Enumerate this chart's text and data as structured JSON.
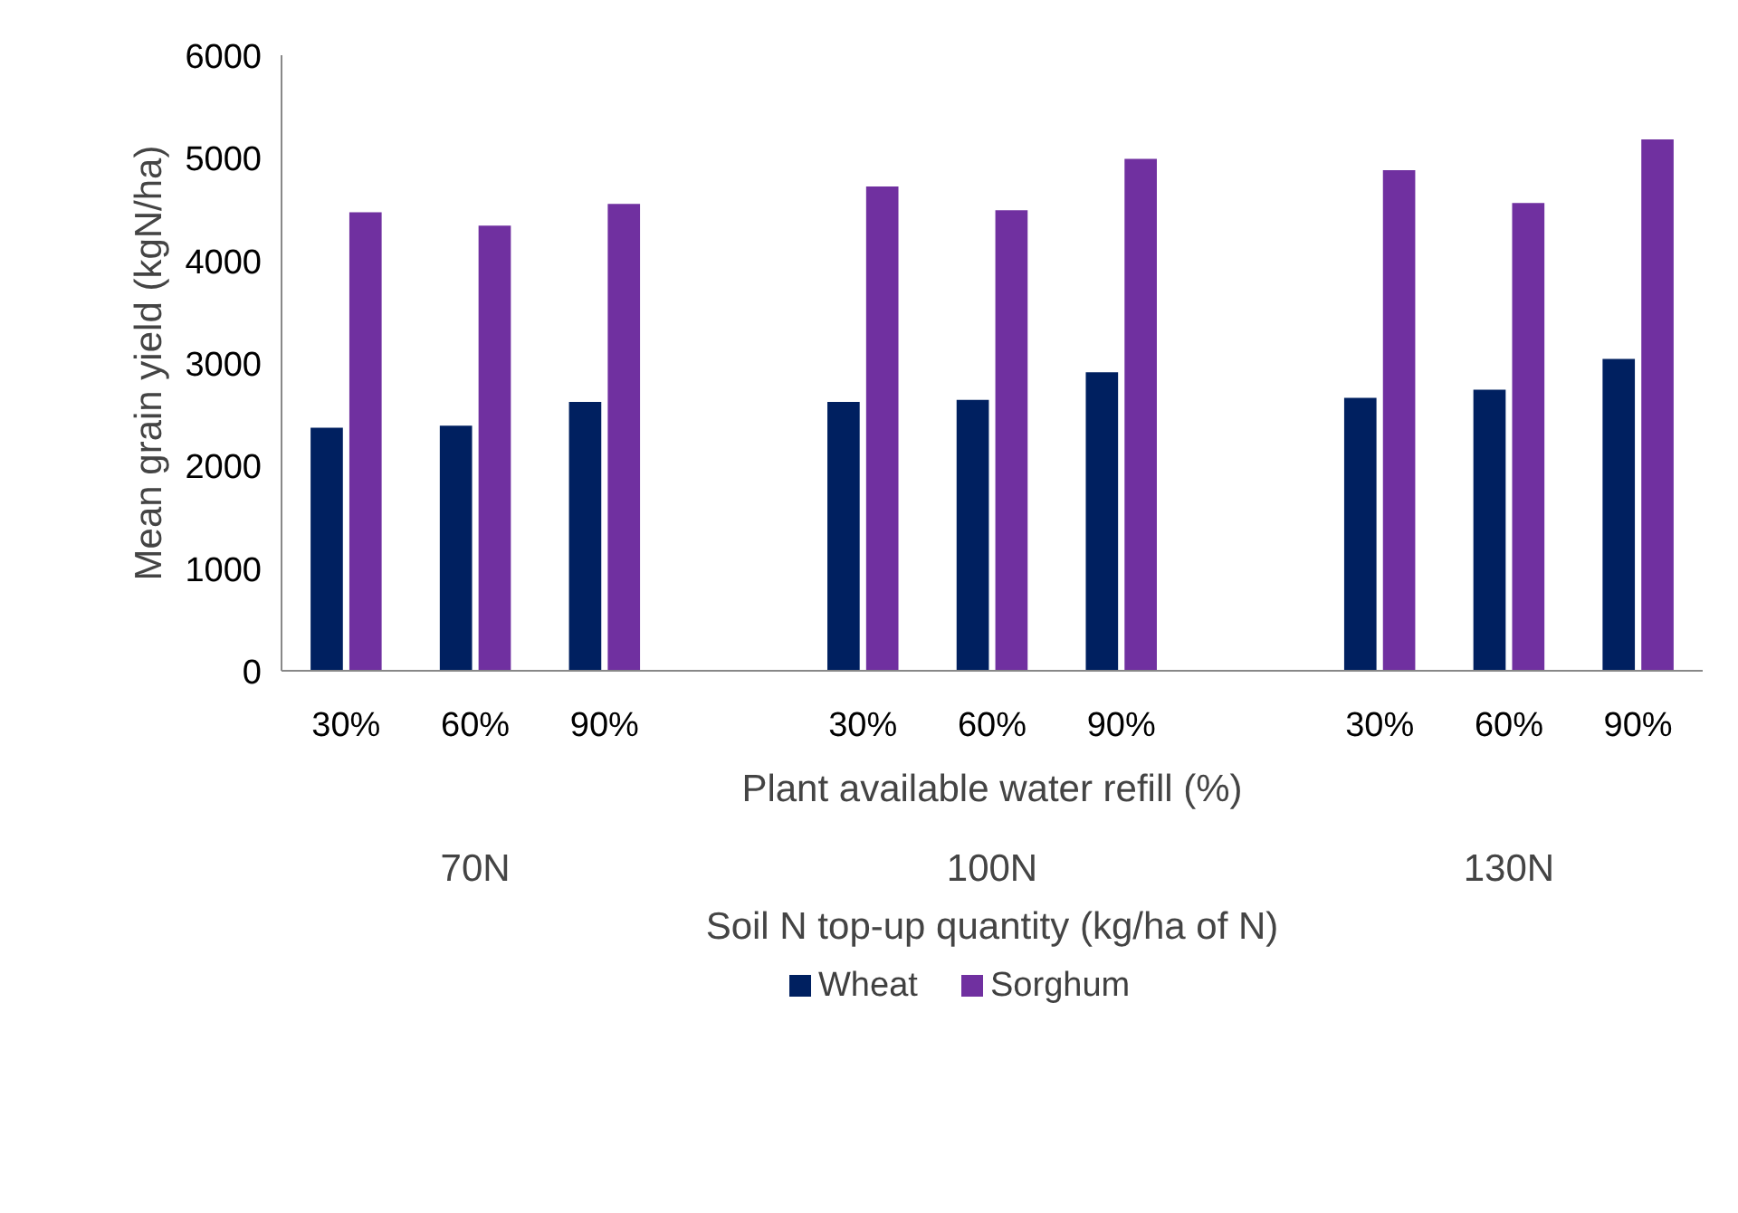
{
  "chart_data": {
    "type": "bar",
    "xlabel": "Plant available water refill (%)",
    "ylabel": "Mean grain yield (kgN/ha)",
    "categories": [
      "30%",
      "60%",
      "90%",
      null,
      "30%",
      "60%",
      "90%",
      null,
      "30%",
      "60%",
      "90%"
    ],
    "series": [
      {
        "name": "Wheat",
        "color": "#002060",
        "values": [
          2370,
          2390,
          2620,
          null,
          2620,
          2640,
          2910,
          null,
          2660,
          2740,
          3040
        ]
      },
      {
        "name": "Sorghum",
        "color": "#7030a0",
        "values": [
          4470,
          4340,
          4550,
          null,
          4720,
          4490,
          4990,
          null,
          4880,
          4560,
          5180
        ]
      }
    ],
    "ylim": [
      0,
      6000
    ],
    "yticks": [
      0,
      1000,
      2000,
      3000,
      4000,
      5000,
      6000
    ],
    "grid": false,
    "legend": "bottom",
    "annotations": [
      "70N",
      "100N",
      "130N",
      "Soil N top-up quantity (kg/ha of N)"
    ]
  }
}
